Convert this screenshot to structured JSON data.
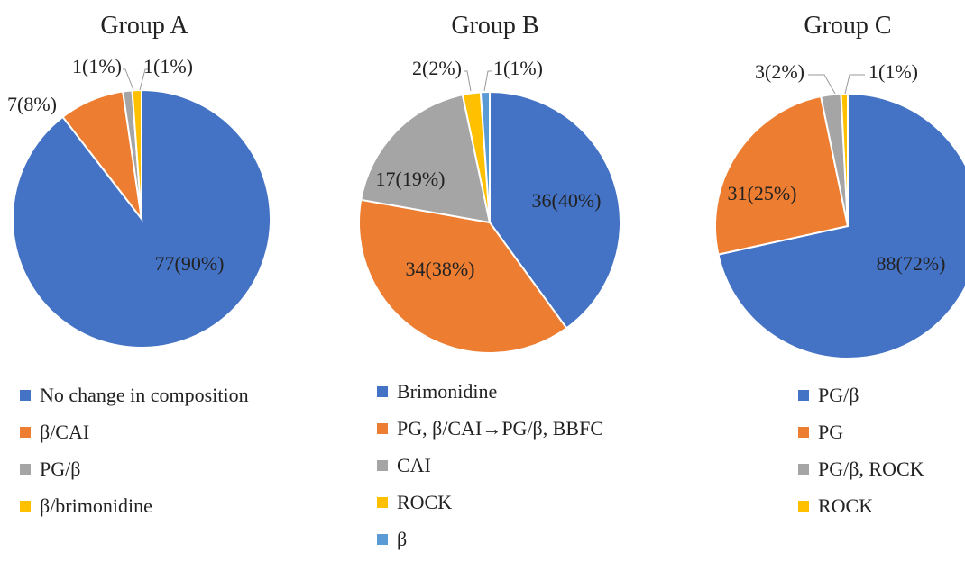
{
  "chart_data": [
    {
      "type": "pie",
      "title": "Group A",
      "slices": [
        {
          "label": "No change in composition",
          "value": 77,
          "percent": "90%",
          "display": "77(90%)",
          "color": "#4472C4"
        },
        {
          "label": "β/CAI",
          "value": 7,
          "percent": "8%",
          "display": "7(8%)",
          "color": "#ED7D31"
        },
        {
          "label": "PG/β",
          "value": 1,
          "percent": "1%",
          "display": "1(1%)",
          "color": "#A5A5A5"
        },
        {
          "label": "β/brimonidine",
          "value": 1,
          "percent": "1%",
          "display": "1(1%)",
          "color": "#FFC000"
        }
      ],
      "legend_position": "bottom"
    },
    {
      "type": "pie",
      "title": "Group B",
      "slices": [
        {
          "label": "Brimonidine",
          "value": 36,
          "percent": "40%",
          "display": "36(40%)",
          "color": "#4472C4"
        },
        {
          "label": "PG, β/CAI→PG/β, BBFC",
          "value": 34,
          "percent": "38%",
          "display": "34(38%)",
          "color": "#ED7D31"
        },
        {
          "label": "CAI",
          "value": 17,
          "percent": "19%",
          "display": "17(19%)",
          "color": "#A5A5A5"
        },
        {
          "label": "ROCK",
          "value": 2,
          "percent": "2%",
          "display": "2(2%)",
          "color": "#FFC000"
        },
        {
          "label": "β",
          "value": 1,
          "percent": "1%",
          "display": "1(1%)",
          "color": "#5B9BD5"
        }
      ],
      "legend_position": "bottom"
    },
    {
      "type": "pie",
      "title": "Group C",
      "slices": [
        {
          "label": "PG/β",
          "value": 88,
          "percent": "72%",
          "display": "88(72%)",
          "color": "#4472C4"
        },
        {
          "label": "PG",
          "value": 31,
          "percent": "25%",
          "display": "31(25%)",
          "color": "#ED7D31"
        },
        {
          "label": "PG/β, ROCK",
          "value": 3,
          "percent": "2%",
          "display": "3(2%)",
          "color": "#A5A5A5"
        },
        {
          "label": "ROCK",
          "value": 1,
          "percent": "1%",
          "display": "1(1%)",
          "color": "#FFC000"
        }
      ],
      "legend_position": "bottom"
    }
  ]
}
